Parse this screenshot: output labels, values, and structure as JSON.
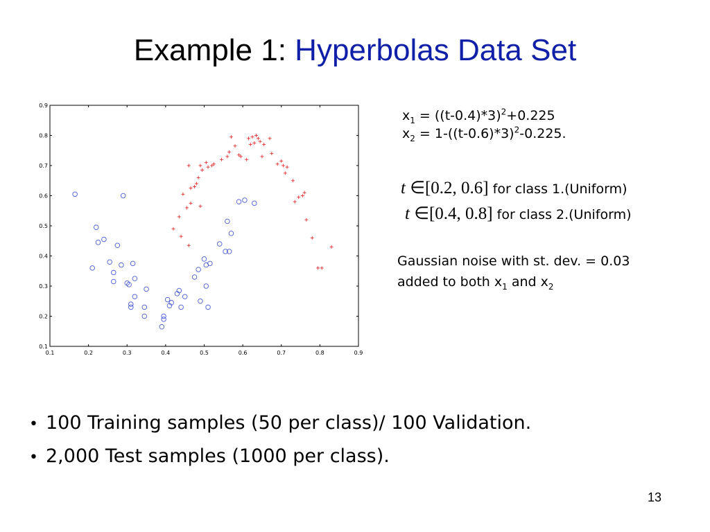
{
  "slide": {
    "title_prefix": "Example 1:",
    "title_highlight": "Hyperbolas Data Set",
    "page_number": "13"
  },
  "equations": {
    "x1_lhs": "x",
    "x1_sub": "1",
    "x1_mid": " = ((t-0.4)*3)",
    "x1_sup": "2",
    "x1_tail": "+0.225",
    "x2_lhs": "x",
    "x2_sub": "2",
    "x2_mid": " = 1-((t-0.6)*3)",
    "x2_sup": "2",
    "x2_tail": "-0.225."
  },
  "ranges": {
    "class1_math": "[0.2, 0.6]",
    "class1_label": "for class 1.(Uniform)",
    "class2_math": "[0.4, 0.8]",
    "class2_label": "for class 2.(Uniform)",
    "var": "t",
    "in_symbol": "∈"
  },
  "noise": {
    "line1": "Gaussian noise with st. dev. = 0.03",
    "line2_a": "added to both x",
    "line2_sub1": "1",
    "line2_b": " and x",
    "line2_sub2": "2"
  },
  "bullets": [
    "100 Training samples (50 per class)/ 100 Validation.",
    "2,000 Test samples (1000 per class)."
  ],
  "bullet_marker": "•",
  "chart_data": {
    "type": "scatter",
    "xlim": [
      0.1,
      0.9
    ],
    "ylim": [
      0.1,
      0.9
    ],
    "x_ticks": [
      "0.1",
      "0.2",
      "0.3",
      "0.4",
      "0.5",
      "0.6",
      "0.7",
      "0.8",
      "0.9"
    ],
    "y_ticks": [
      "0.1",
      "0.2",
      "0.3",
      "0.4",
      "0.5",
      "0.6",
      "0.7",
      "0.8",
      "0.9"
    ],
    "grid": false,
    "series": [
      {
        "marker": "circle",
        "color": "#4a5bd8",
        "points": [
          [
            0.165,
            0.605
          ],
          [
            0.21,
            0.36
          ],
          [
            0.22,
            0.495
          ],
          [
            0.225,
            0.445
          ],
          [
            0.24,
            0.455
          ],
          [
            0.255,
            0.38
          ],
          [
            0.265,
            0.315
          ],
          [
            0.265,
            0.345
          ],
          [
            0.275,
            0.435
          ],
          [
            0.285,
            0.37
          ],
          [
            0.29,
            0.6
          ],
          [
            0.3,
            0.31
          ],
          [
            0.305,
            0.305
          ],
          [
            0.31,
            0.23
          ],
          [
            0.31,
            0.24
          ],
          [
            0.315,
            0.375
          ],
          [
            0.32,
            0.325
          ],
          [
            0.32,
            0.265
          ],
          [
            0.345,
            0.23
          ],
          [
            0.345,
            0.2
          ],
          [
            0.35,
            0.29
          ],
          [
            0.39,
            0.165
          ],
          [
            0.395,
            0.19
          ],
          [
            0.395,
            0.2
          ],
          [
            0.405,
            0.255
          ],
          [
            0.41,
            0.235
          ],
          [
            0.415,
            0.245
          ],
          [
            0.43,
            0.275
          ],
          [
            0.435,
            0.285
          ],
          [
            0.44,
            0.23
          ],
          [
            0.45,
            0.265
          ],
          [
            0.475,
            0.33
          ],
          [
            0.485,
            0.355
          ],
          [
            0.49,
            0.25
          ],
          [
            0.5,
            0.39
          ],
          [
            0.505,
            0.37
          ],
          [
            0.505,
            0.3
          ],
          [
            0.51,
            0.23
          ],
          [
            0.515,
            0.375
          ],
          [
            0.54,
            0.44
          ],
          [
            0.555,
            0.415
          ],
          [
            0.56,
            0.515
          ],
          [
            0.565,
            0.415
          ],
          [
            0.57,
            0.475
          ],
          [
            0.59,
            0.58
          ],
          [
            0.605,
            0.585
          ],
          [
            0.63,
            0.575
          ]
        ]
      },
      {
        "marker": "plus",
        "color": "#e03030",
        "points": [
          [
            0.42,
            0.49
          ],
          [
            0.435,
            0.53
          ],
          [
            0.44,
            0.465
          ],
          [
            0.445,
            0.605
          ],
          [
            0.455,
            0.56
          ],
          [
            0.46,
            0.435
          ],
          [
            0.46,
            0.7
          ],
          [
            0.465,
            0.575
          ],
          [
            0.465,
            0.625
          ],
          [
            0.475,
            0.63
          ],
          [
            0.48,
            0.64
          ],
          [
            0.485,
            0.66
          ],
          [
            0.49,
            0.565
          ],
          [
            0.49,
            0.7
          ],
          [
            0.495,
            0.685
          ],
          [
            0.505,
            0.71
          ],
          [
            0.51,
            0.695
          ],
          [
            0.52,
            0.7
          ],
          [
            0.525,
            0.705
          ],
          [
            0.545,
            0.72
          ],
          [
            0.56,
            0.73
          ],
          [
            0.565,
            0.745
          ],
          [
            0.57,
            0.795
          ],
          [
            0.58,
            0.765
          ],
          [
            0.59,
            0.735
          ],
          [
            0.595,
            0.73
          ],
          [
            0.61,
            0.72
          ],
          [
            0.615,
            0.79
          ],
          [
            0.62,
            0.77
          ],
          [
            0.625,
            0.795
          ],
          [
            0.63,
            0.775
          ],
          [
            0.635,
            0.8
          ],
          [
            0.64,
            0.79
          ],
          [
            0.645,
            0.78
          ],
          [
            0.65,
            0.73
          ],
          [
            0.655,
            0.77
          ],
          [
            0.67,
            0.79
          ],
          [
            0.675,
            0.74
          ],
          [
            0.69,
            0.705
          ],
          [
            0.7,
            0.715
          ],
          [
            0.705,
            0.7
          ],
          [
            0.71,
            0.675
          ],
          [
            0.715,
            0.695
          ],
          [
            0.73,
            0.65
          ],
          [
            0.735,
            0.58
          ],
          [
            0.745,
            0.595
          ],
          [
            0.755,
            0.6
          ],
          [
            0.76,
            0.61
          ],
          [
            0.765,
            0.52
          ],
          [
            0.78,
            0.46
          ],
          [
            0.795,
            0.36
          ],
          [
            0.805,
            0.36
          ],
          [
            0.83,
            0.43
          ]
        ]
      }
    ]
  }
}
